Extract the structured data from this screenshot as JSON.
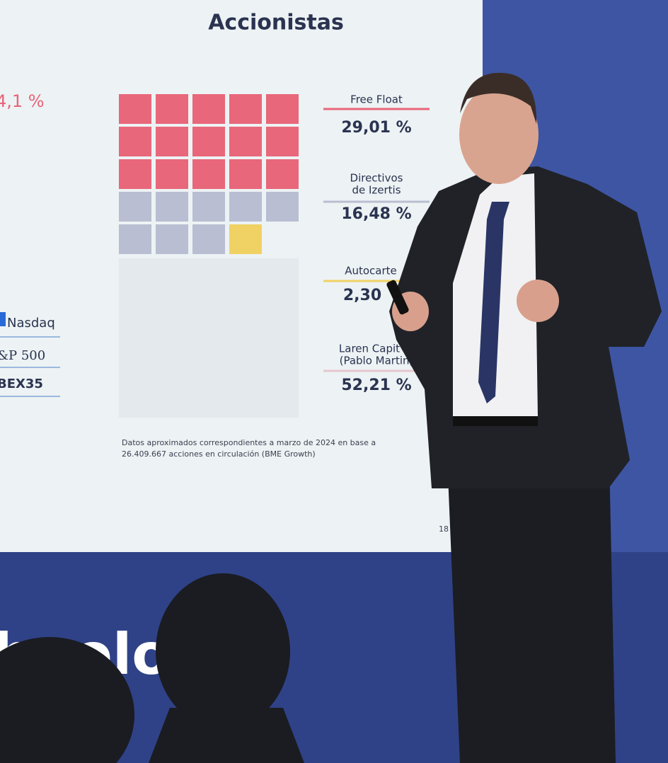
{
  "slide": {
    "title": "Accionistas",
    "left_value": "4,1 %",
    "logos": [
      "Nasdaq",
      "&P 500",
      "BEX35"
    ],
    "legend": [
      {
        "lines": [
          "Free Float"
        ],
        "value": "29,01 %"
      },
      {
        "lines": [
          "Directivos",
          "de Izertis"
        ],
        "value": "16,48 %"
      },
      {
        "lines": [
          "Autocarte"
        ],
        "value": "2,30"
      },
      {
        "lines": [
          "Laren Capit",
          "(Pablo Martin)"
        ],
        "value": "52,21 %"
      }
    ],
    "footnote": [
      "Datos aproximados correspondientes a marzo de 2024 en base a",
      "26.409.667 acciones en circulación (BME Growth)"
    ],
    "page_number": "18"
  },
  "banner": {
    "text": "hnolo y"
  }
}
